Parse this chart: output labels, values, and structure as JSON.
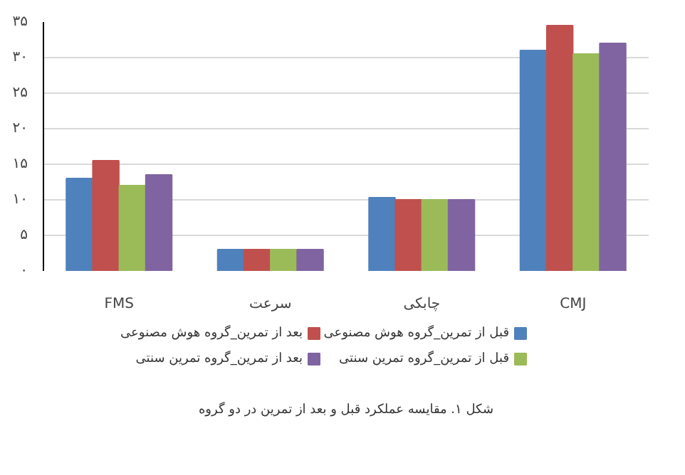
{
  "chart_data": {
    "type": "bar",
    "categories": [
      "FMS",
      "سرعت",
      "چابکی",
      "CMJ"
    ],
    "series": [
      {
        "name": "قبل از تمرین_گروه هوش مصنوعی",
        "color": "#4f81bd",
        "values": [
          13,
          3,
          10.3,
          31
        ]
      },
      {
        "name": "بعد از تمرین_گروه هوش مصنوعی",
        "color": "#c0504d",
        "values": [
          15.5,
          3,
          10,
          34.5
        ]
      },
      {
        "name": "قبل از تمرین_گروه تمرین سنتی",
        "color": "#9bbb59",
        "values": [
          12,
          3,
          10,
          30.5
        ]
      },
      {
        "name": "بعد از تمرین_گروه تمرین سنتی",
        "color": "#8064a2",
        "values": [
          13.5,
          3,
          10,
          32
        ]
      }
    ],
    "ylim": [
      0,
      35
    ],
    "yticks": [
      {
        "value": 0,
        "label": "۰"
      },
      {
        "value": 5,
        "label": "۵"
      },
      {
        "value": 10,
        "label": "۱۰"
      },
      {
        "value": 15,
        "label": "۱۵"
      },
      {
        "value": 20,
        "label": "۲۰"
      },
      {
        "value": 25,
        "label": "۲۵"
      },
      {
        "value": 30,
        "label": "۳۰"
      },
      {
        "value": 35,
        "label": "۳۵"
      }
    ],
    "grid": "y",
    "legend": "bottom",
    "annotations": [
      "شکل ۱. مقایسه عملکرد قبل و بعد از تمرین در دو گروه"
    ]
  }
}
